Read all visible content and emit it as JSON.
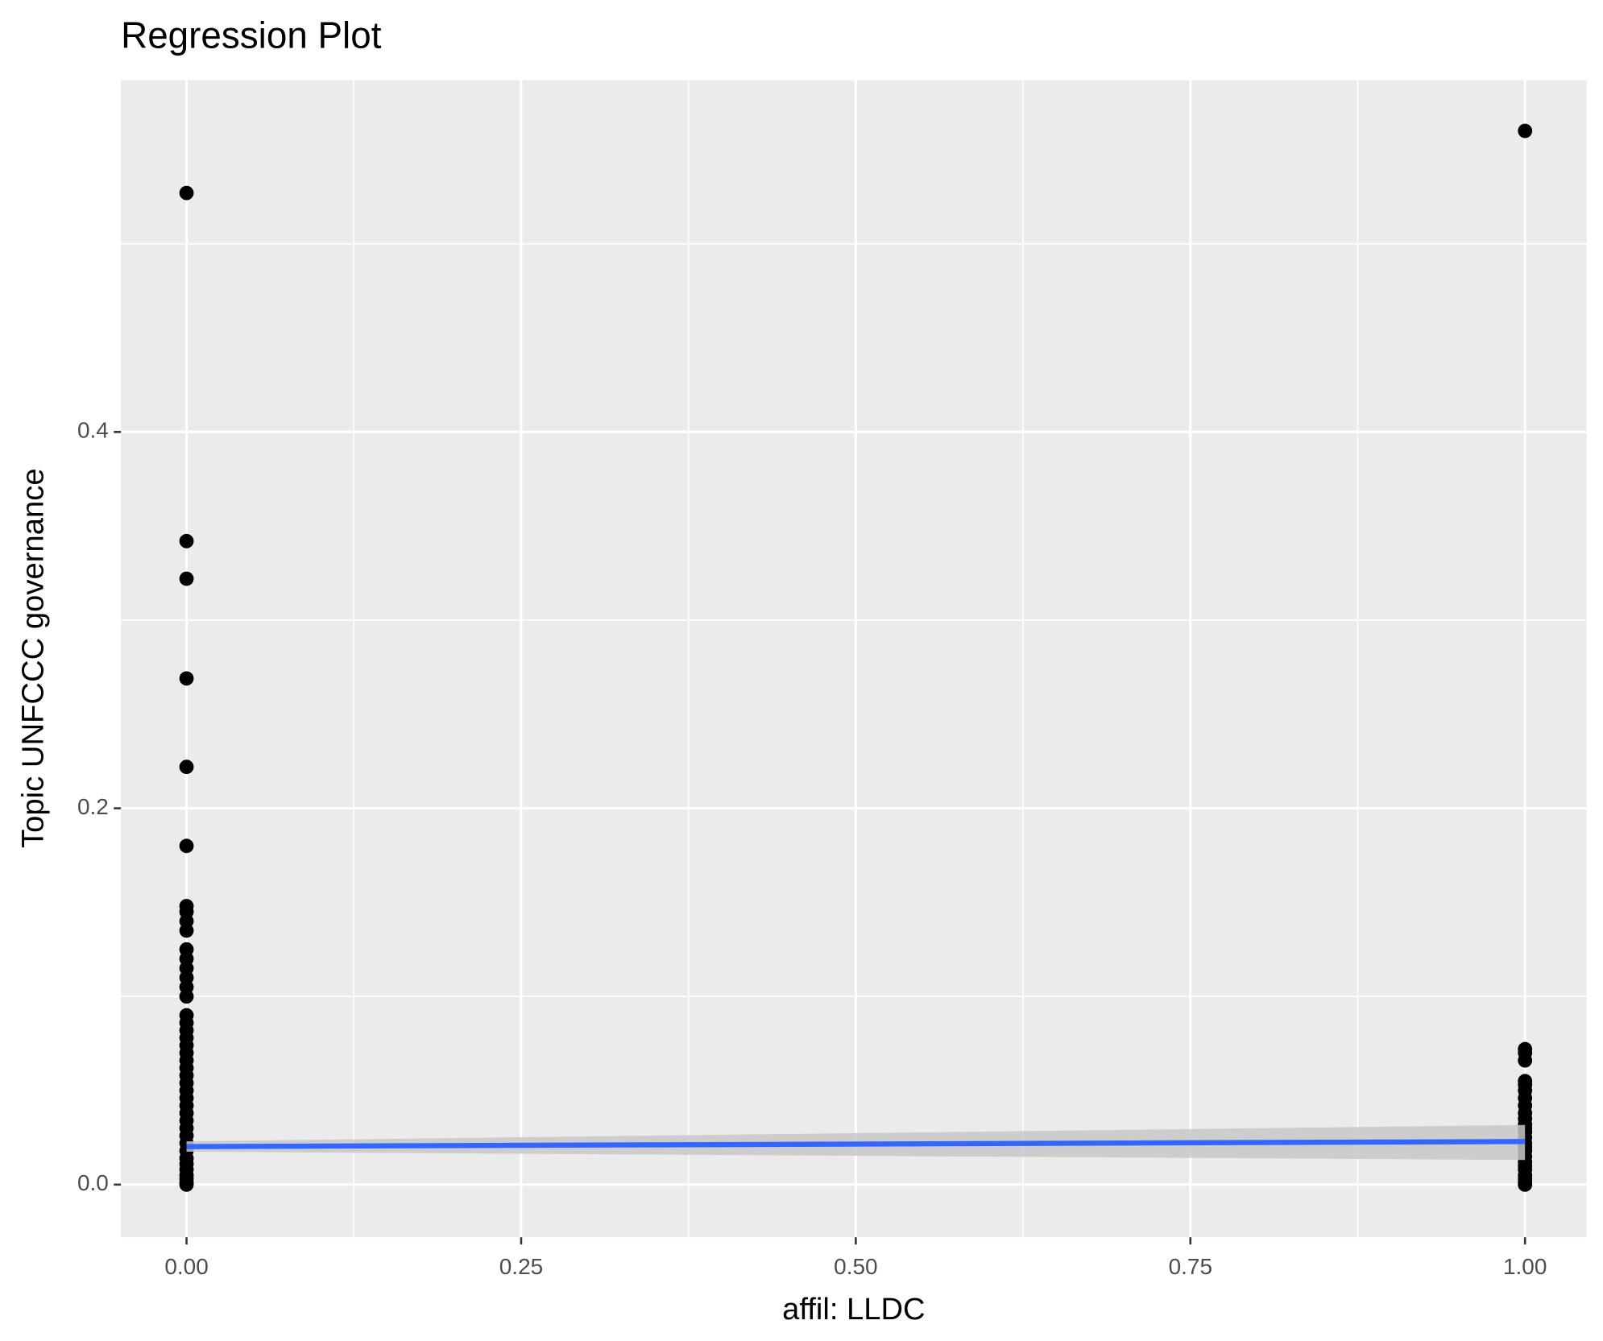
{
  "chart_data": {
    "type": "scatter",
    "title": "Regression Plot",
    "x_label": "affil: LLDC",
    "y_label": "Topic UNFCCC governance",
    "xlim": [
      -0.049,
      1.046
    ],
    "ylim": [
      -0.028,
      0.587
    ],
    "xticks": [
      {
        "value": 0,
        "label": "0.00"
      },
      {
        "value": 0.25,
        "label": "0.25"
      },
      {
        "value": 0.5,
        "label": "0.50"
      },
      {
        "value": 0.75,
        "label": "0.75"
      },
      {
        "value": 1,
        "label": "1.00"
      }
    ],
    "yticks": [
      {
        "value": 0,
        "label": "0.0"
      },
      {
        "value": 0.2,
        "label": "0.2"
      },
      {
        "value": 0.4,
        "label": "0.4"
      }
    ],
    "xminor": [
      0.125,
      0.375,
      0.625,
      0.875
    ],
    "yminor": [
      0.1,
      0.3,
      0.5
    ],
    "grid": true,
    "points": {
      "color": "#000000",
      "x": [
        0,
        0,
        0,
        0,
        0,
        0,
        0,
        0,
        0,
        0,
        0,
        0,
        0,
        0,
        0,
        0,
        0,
        0,
        0,
        0,
        0,
        0,
        0,
        0,
        0,
        0,
        0,
        0,
        0,
        0,
        0,
        0,
        0,
        0,
        0,
        0,
        0,
        0,
        0,
        0,
        0,
        0,
        1,
        1,
        1,
        1,
        1,
        1,
        1,
        1,
        1,
        1,
        1,
        1,
        1,
        1,
        1,
        1,
        1,
        1,
        1,
        1,
        1,
        1,
        1,
        1,
        1,
        1
      ],
      "y": [
        0.527,
        0.342,
        0.322,
        0.269,
        0.222,
        0.18,
        0.148,
        0.145,
        0.14,
        0.135,
        0.125,
        0.12,
        0.115,
        0.11,
        0.105,
        0.1,
        0.09,
        0.086,
        0.082,
        0.078,
        0.074,
        0.07,
        0.066,
        0.062,
        0.058,
        0.054,
        0.05,
        0.046,
        0.042,
        0.038,
        0.034,
        0.03,
        0.026,
        0.022,
        0.018,
        0.014,
        0.011,
        0.008,
        0.005,
        0.003,
        0.001,
        0,
        0.56,
        0.072,
        0.07,
        0.066,
        0.055,
        0.053,
        0.05,
        0.046,
        0.042,
        0.038,
        0.035,
        0.032,
        0.03,
        0.028,
        0.025,
        0.022,
        0.02,
        0.018,
        0.015,
        0.012,
        0.01,
        0.008,
        0.005,
        0.003,
        0.001,
        0
      ]
    },
    "fit": {
      "color": "#3366ff",
      "band_color": "#c8c8c8",
      "x": [
        0,
        1
      ],
      "y": [
        0.0202,
        0.0229
      ],
      "lower": [
        0.0175,
        0.0131
      ],
      "upper": [
        0.023,
        0.0317
      ]
    }
  }
}
